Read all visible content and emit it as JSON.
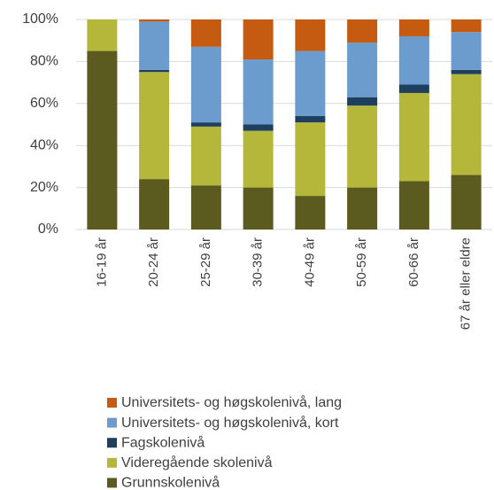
{
  "chart_data": {
    "type": "stacked_bar",
    "categories": [
      "16-19 år",
      "20-24 år",
      "25-29 år",
      "30-39 år",
      "40-49 år",
      "50-59 år",
      "60-66 år",
      "67 år eller eldre"
    ],
    "series": [
      {
        "name": "Grunnskolenivå",
        "color": "#5b5b1f",
        "values": [
          85,
          24,
          21,
          20,
          16,
          20,
          23,
          26
        ]
      },
      {
        "name": "Videregående skolenivå",
        "color": "#b5b73b",
        "values": [
          15,
          51,
          28,
          27,
          35,
          39,
          42,
          48
        ]
      },
      {
        "name": "Fagskolenivå",
        "color": "#1f3f5f",
        "values": [
          0,
          1,
          2,
          3,
          3,
          4,
          4,
          2
        ]
      },
      {
        "name": "Universitets- og høgskolenivå, kort",
        "color": "#6b9ccd",
        "values": [
          0,
          23,
          36,
          31,
          31,
          26,
          23,
          18
        ]
      },
      {
        "name": "Universitets- og høgskolenivå, lang",
        "color": "#c55a11",
        "values": [
          0,
          1,
          13,
          19,
          15,
          11,
          8,
          6
        ]
      }
    ],
    "ylim": [
      0,
      100
    ],
    "yticks": [
      {
        "value": 0,
        "label": "0%"
      },
      {
        "value": 20,
        "label": "20%"
      },
      {
        "value": 40,
        "label": "40%"
      },
      {
        "value": 60,
        "label": "60%"
      },
      {
        "value": 80,
        "label": "80%"
      },
      {
        "value": 100,
        "label": "100%"
      }
    ],
    "grid": true
  }
}
